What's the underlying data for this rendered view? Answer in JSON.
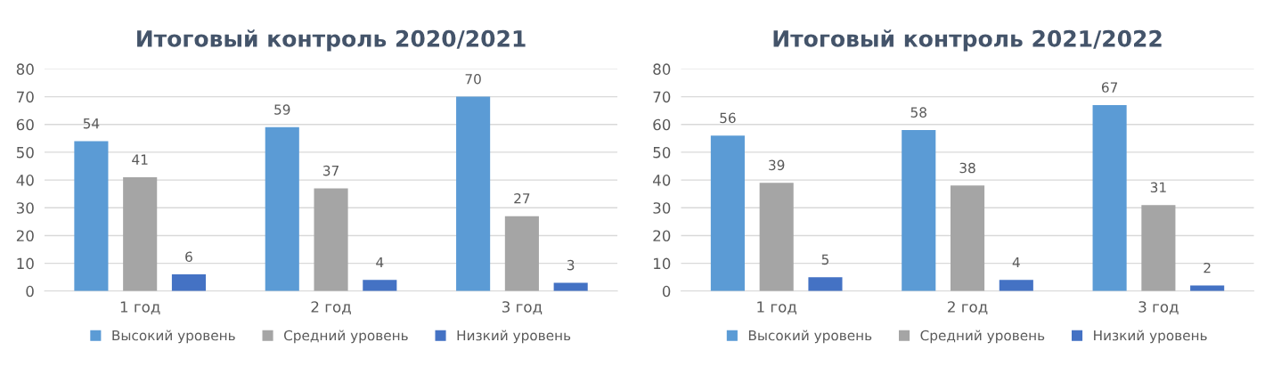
{
  "chart_data": [
    {
      "type": "bar",
      "title": "Итоговый контроль 2020/2021",
      "categories": [
        "1 год",
        "2 год",
        "3 год"
      ],
      "series": [
        {
          "name": "Высокий уровень",
          "color": "#5b9bd5",
          "values": [
            54,
            59,
            70
          ]
        },
        {
          "name": "Средний уровень",
          "color": "#a5a5a5",
          "values": [
            41,
            37,
            27
          ]
        },
        {
          "name": "Низкий уровень",
          "color": "#4472c4",
          "values": [
            6,
            4,
            3
          ]
        }
      ],
      "ylim": [
        0,
        80
      ],
      "yticks": [
        0,
        10,
        20,
        30,
        40,
        50,
        60,
        70,
        80
      ],
      "grid": "y",
      "legend": "bottom",
      "data_labels": true
    },
    {
      "type": "bar",
      "title": "Итоговый контроль 2021/2022",
      "categories": [
        "1 год",
        "2 год",
        "3 год"
      ],
      "series": [
        {
          "name": "Высокий уровень",
          "color": "#5b9bd5",
          "values": [
            56,
            58,
            67
          ]
        },
        {
          "name": "Средний уровень",
          "color": "#a5a5a5",
          "values": [
            39,
            38,
            31
          ]
        },
        {
          "name": "Низкий уровень",
          "color": "#4472c4",
          "values": [
            5,
            4,
            2
          ]
        }
      ],
      "ylim": [
        0,
        80
      ],
      "yticks": [
        0,
        10,
        20,
        30,
        40,
        50,
        60,
        70,
        80
      ],
      "grid": "y",
      "legend": "bottom",
      "data_labels": true
    }
  ]
}
